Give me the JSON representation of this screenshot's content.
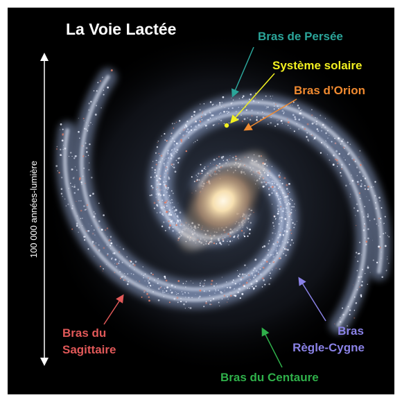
{
  "title": "La Voie Lactée",
  "scale": {
    "label": "100 000 années-lumière"
  },
  "labels": [
    {
      "lines": [
        "Bras de Persée"
      ]
    },
    {
      "lines": [
        "Système solaire"
      ]
    },
    {
      "lines": [
        "Bras d’Orion"
      ]
    },
    {
      "lines": [
        "Bras du",
        "Sagittaire"
      ]
    },
    {
      "lines": [
        "Bras",
        "Règle-Cygne"
      ]
    },
    {
      "lines": [
        "Bras du Centaure"
      ]
    }
  ]
}
